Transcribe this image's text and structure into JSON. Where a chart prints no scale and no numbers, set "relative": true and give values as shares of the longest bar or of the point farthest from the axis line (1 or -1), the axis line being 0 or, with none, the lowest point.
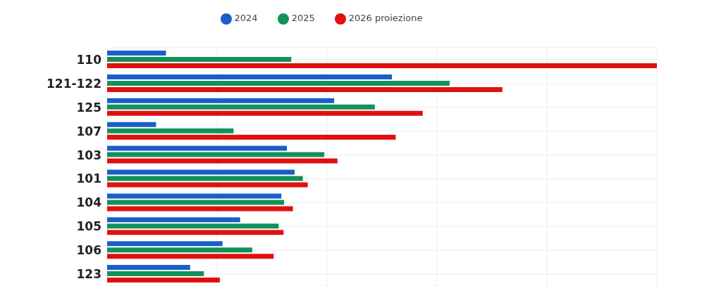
{
  "chart_data": {
    "type": "bar",
    "orientation": "horizontal",
    "relative": true,
    "grid": true,
    "legend": "top",
    "categories": [
      "110",
      "121-122",
      "125",
      "107",
      "103",
      "101",
      "104",
      "105",
      "106",
      "123"
    ],
    "series": [
      {
        "name": "2024",
        "color": "#1a5fc8",
        "values": [
          0.107,
          0.518,
          0.413,
          0.089,
          0.327,
          0.341,
          0.317,
          0.242,
          0.21,
          0.151
        ]
      },
      {
        "name": "2025",
        "color": "#12915a",
        "values": [
          0.335,
          0.623,
          0.487,
          0.23,
          0.395,
          0.356,
          0.322,
          0.312,
          0.264,
          0.176
        ]
      },
      {
        "name": "2026 proiezione",
        "color": "#e01010",
        "values": [
          1,
          0.719,
          0.574,
          0.525,
          0.419,
          0.365,
          0.338,
          0.321,
          0.303,
          0.205
        ]
      }
    ]
  }
}
